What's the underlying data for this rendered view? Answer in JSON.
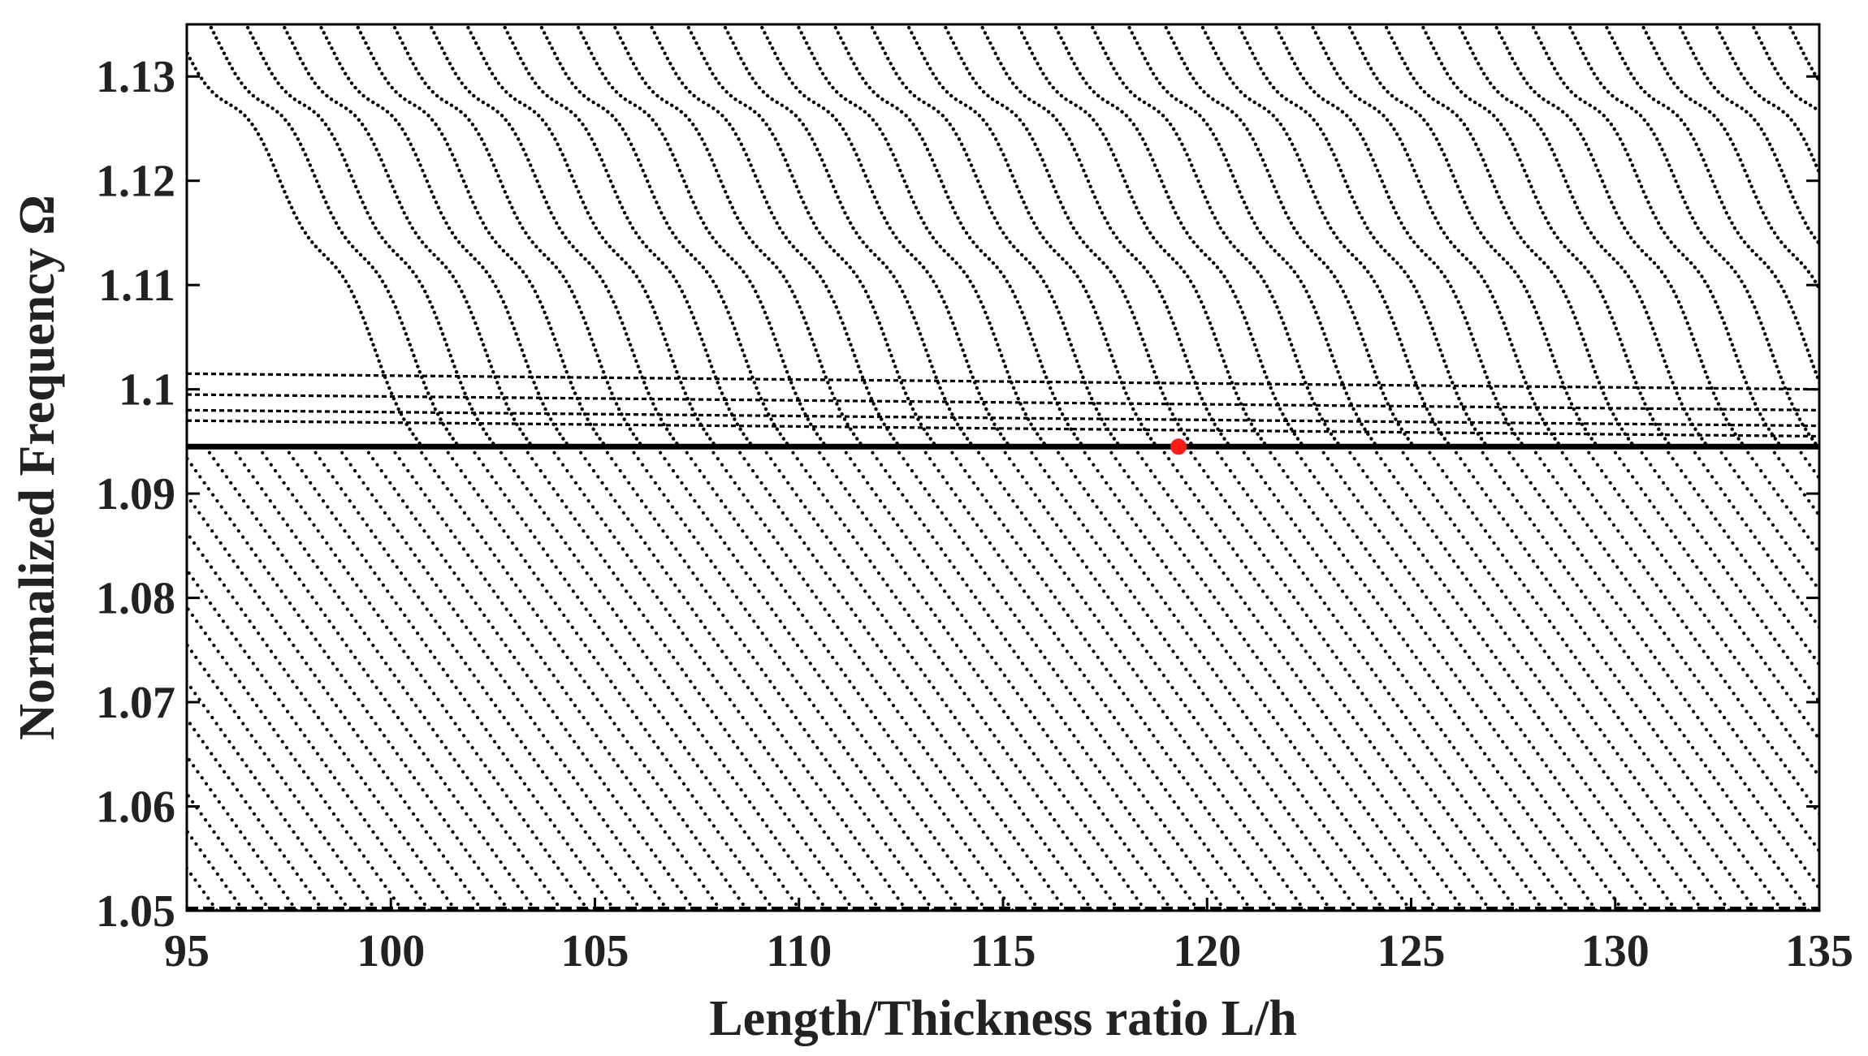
{
  "chart_data": {
    "type": "scatter",
    "title": "",
    "xlabel": "Length/Thickness ratio L/h",
    "ylabel": "Normalized Frequency Ω",
    "xlim": [
      95,
      135
    ],
    "ylim": [
      1.05,
      1.135
    ],
    "x_ticks": [
      95,
      100,
      105,
      110,
      115,
      120,
      125,
      130,
      135
    ],
    "x_tick_labels": [
      "95",
      "100",
      "105",
      "110",
      "115",
      "120",
      "125",
      "130",
      "135"
    ],
    "y_ticks": [
      1.05,
      1.06,
      1.07,
      1.08,
      1.09,
      1.1,
      1.11,
      1.12,
      1.13
    ],
    "y_tick_labels": [
      "1.05",
      "1.06",
      "1.07",
      "1.08",
      "1.09",
      "1.1",
      "1.11",
      "1.12",
      "1.13"
    ],
    "grid": false,
    "legend": "none",
    "marker_color": "#000000",
    "plateau_frequency": 1.0945,
    "plateau_secondary_frequencies": [
      1.0955,
      1.0965,
      1.098,
      1.1
    ],
    "diagonal_family_slope_per_unit_ratio": -0.0085,
    "diagonal_family_spacing_ratio": 0.9,
    "lower_family_slope_per_unit_ratio": -0.0055,
    "lower_family_spacing_ratio": 0.65,
    "series": [
      {
        "name": "",
        "description_type": "dotted mode curves",
        "color": "#000000"
      },
      {
        "name": "",
        "color": "#ff1a1a",
        "points": [
          {
            "x": 119.3,
            "y": 1.0945
          }
        ]
      }
    ]
  }
}
